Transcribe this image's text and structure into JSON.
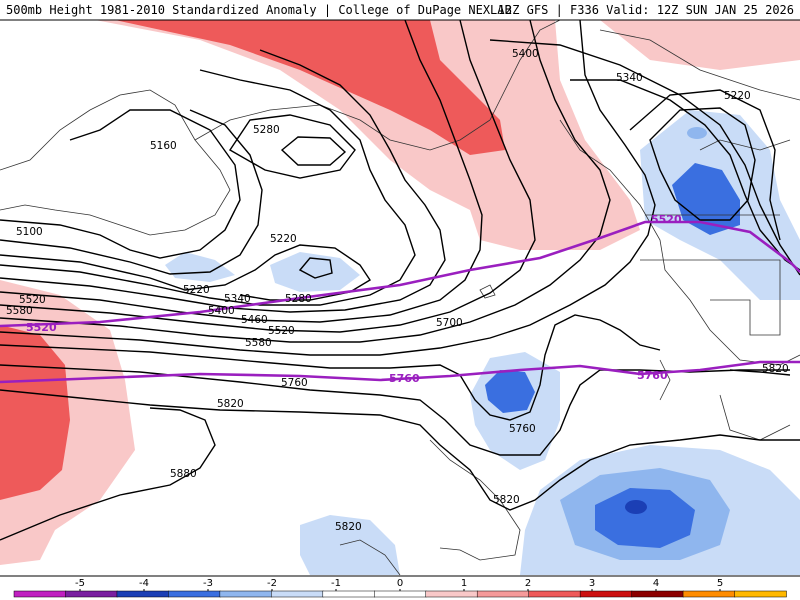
{
  "header": {
    "left": "500mb Height 1981-2010 Standardized Anomaly | College of DuPage NEXLAB",
    "right": "12Z GFS | F336 Valid: 12Z SUN JAN 25 2026"
  },
  "colorbar": {
    "ticks": [
      "-5",
      "-4",
      "-3",
      "-2",
      "-1",
      "0",
      "1",
      "2",
      "3",
      "4",
      "5"
    ],
    "colors": [
      "#c020c0",
      "#7a1fa0",
      "#1b3fb5",
      "#3a6fe0",
      "#8fb6ee",
      "#c9dcf7",
      "#ffffff",
      "#ffffff",
      "#f9c8c8",
      "#f59a9a",
      "#ee5a5a",
      "#cc1010",
      "#8b0000",
      "#ff8c00",
      "#ffb800"
    ]
  },
  "contour_labels": {
    "c5400": "5400",
    "c5340a": "5340",
    "c5220a": "5220",
    "c5280a": "5280",
    "c5160": "5160",
    "c5100": "5100",
    "c5220b": "5220",
    "c5220c": "5220",
    "c5340b": "5340",
    "c5280b": "5280",
    "c5400b": "5400",
    "c5460": "5460",
    "c5520a": "5520",
    "c5580a": "5580",
    "c5520b": "5520",
    "c5580b": "5580",
    "c5700": "5700",
    "c5760a": "5760",
    "c5820a": "5820",
    "c5760b": "5760",
    "c5880": "5880",
    "c5820b": "5820",
    "c5820c": "5820",
    "c5820d": "5820"
  },
  "purple_labels": {
    "p5520a": "5520",
    "p5520b": "5520",
    "p5760a": "5760",
    "p5760b": "5760"
  },
  "colors": {
    "neg1": "#c9dcf7",
    "neg2": "#8fb6ee",
    "neg3": "#3a6fe0",
    "neg4": "#1b3fb5",
    "pos1": "#f9c8c8",
    "pos2": "#f59a9a",
    "pos3": "#ee5a5a",
    "purple": "#9a1fbf"
  }
}
